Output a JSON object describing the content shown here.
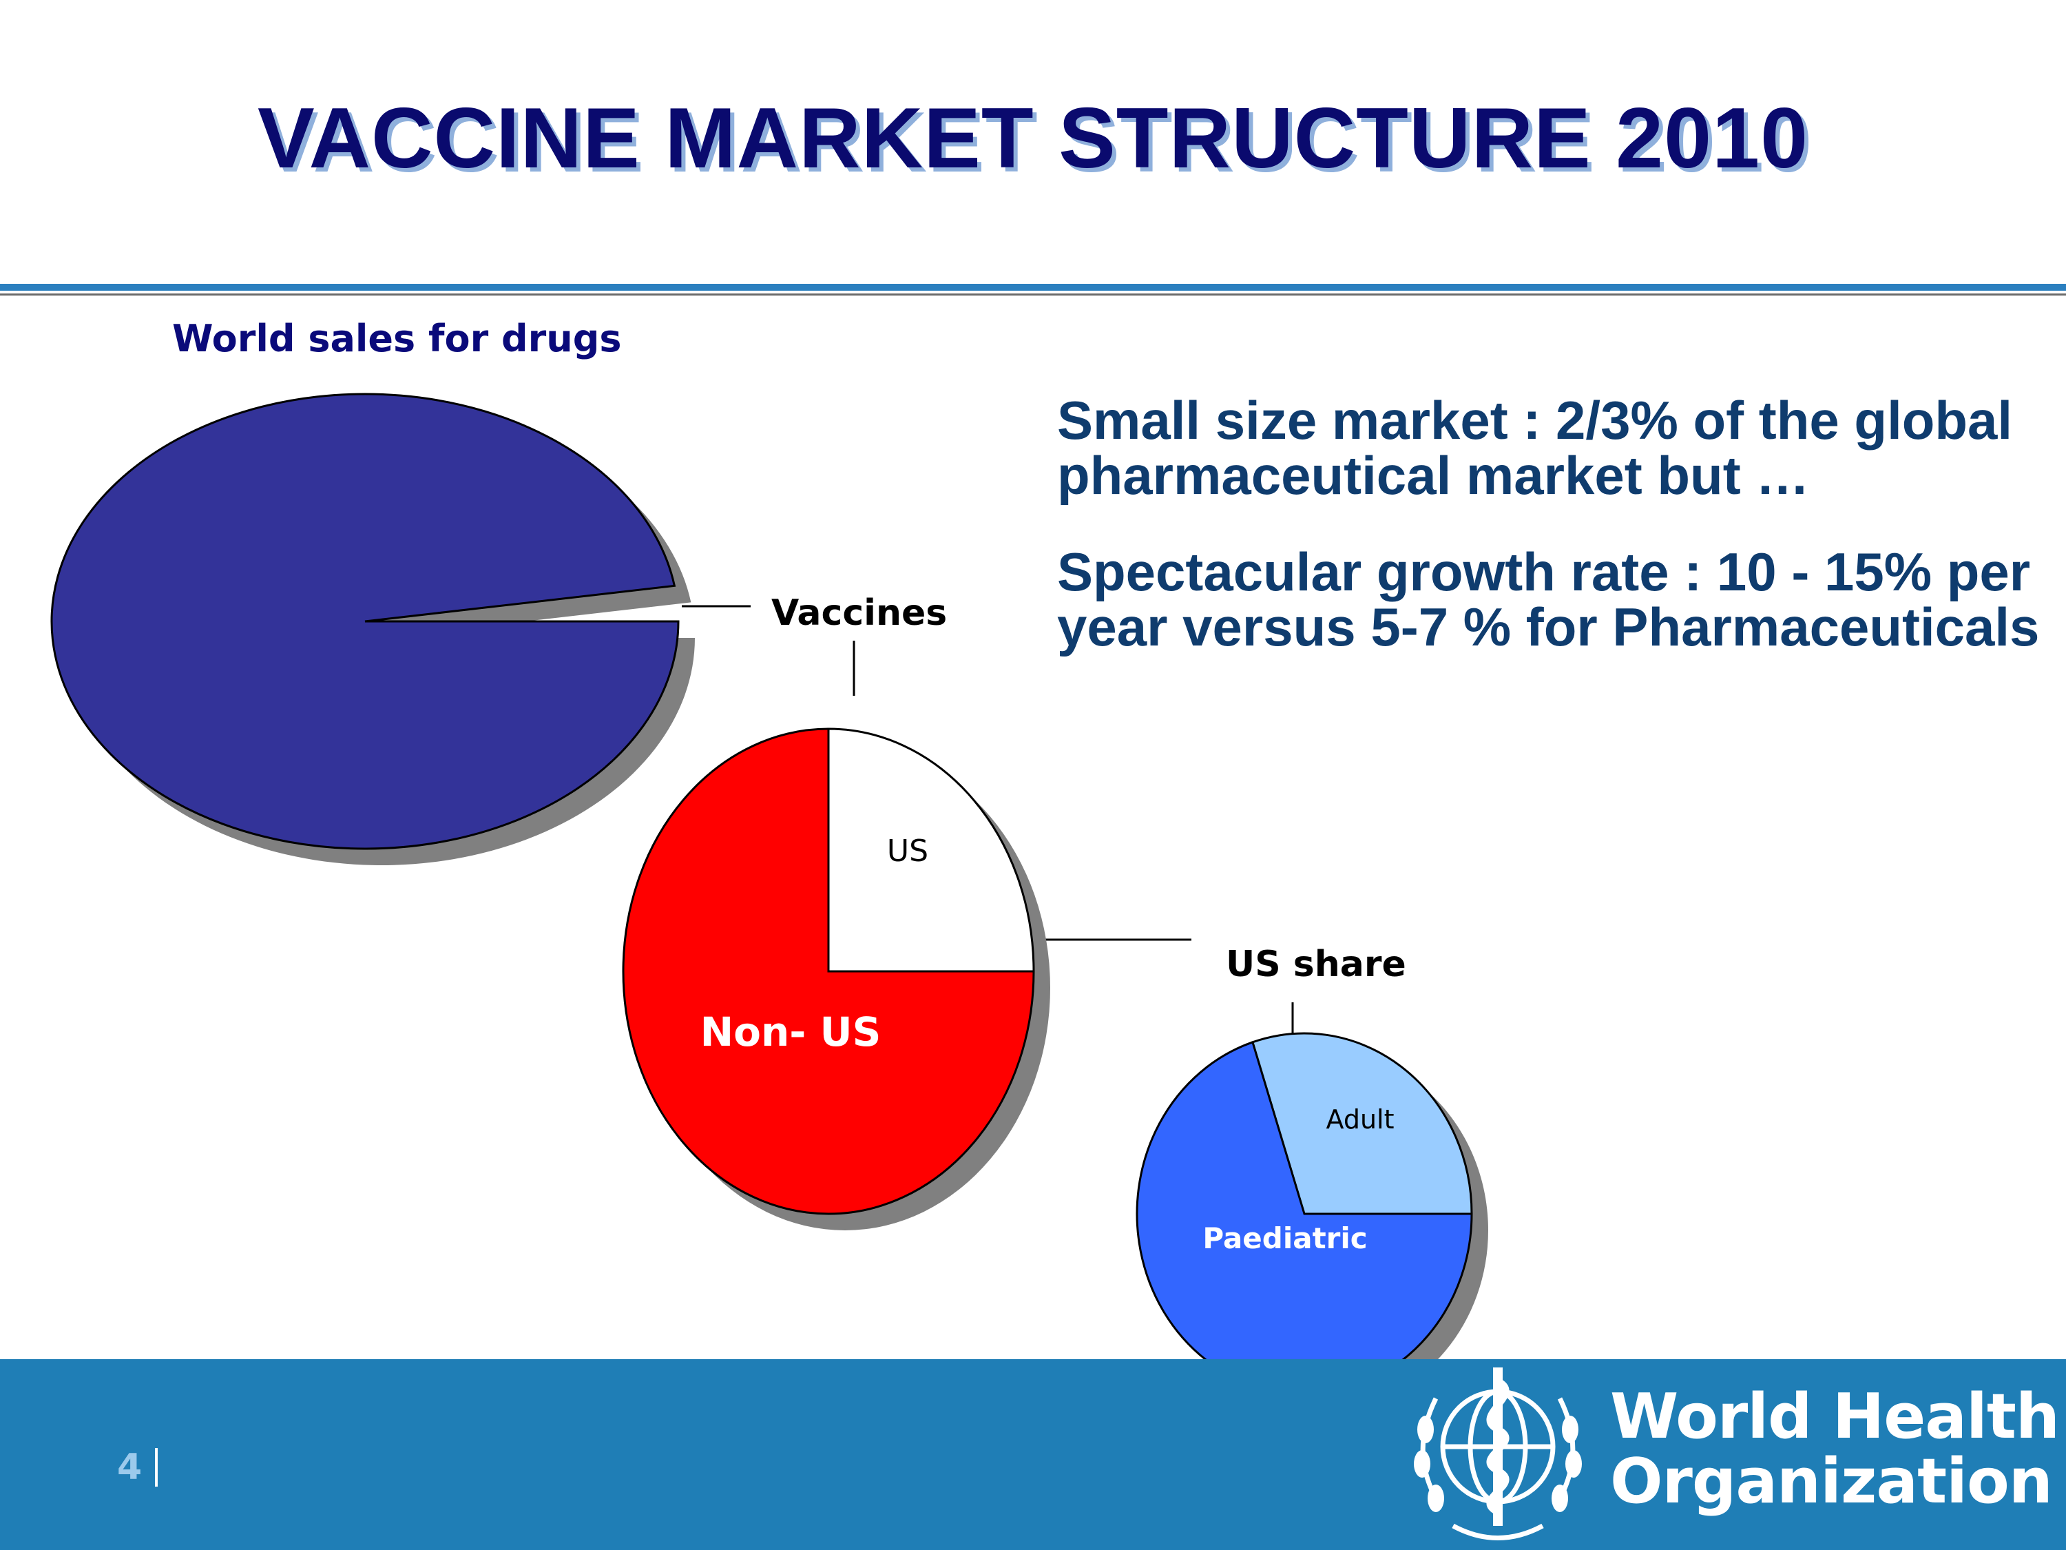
{
  "slide": {
    "title": "VACCINE MARKET STRUCTURE 2010",
    "subtitle": "World sales for drugs",
    "bullets": [
      "Small size market :  2/3% of the global pharmaceutical market but …",
      "Spectacular growth rate : 10 - 15% per year  versus 5-7 % for Pharmaceuticals"
    ],
    "page_number": "4",
    "organization": [
      "World Health",
      "Organization"
    ]
  },
  "colors": {
    "title": "#0a0a6e",
    "footer": "#1f7eb6",
    "drugs": "#333399",
    "non_us": "#ff0000",
    "us": "#ffffff",
    "paediatric": "#3366ff",
    "adult": "#99ccff"
  },
  "icons": [
    "who-emblem-icon"
  ],
  "chart_data": [
    {
      "type": "pie",
      "title": "World sales for drugs",
      "slices": [
        {
          "label": "",
          "value": 97.5,
          "color": "#333399"
        },
        {
          "label": "Vaccines",
          "value": 2.5,
          "color": "#ffffff"
        }
      ],
      "callout": "Vaccines"
    },
    {
      "type": "pie",
      "title": "",
      "slices": [
        {
          "label": "US",
          "value": 25,
          "color": "#ffffff"
        },
        {
          "label": "Non- US",
          "value": 75,
          "color": "#ff0000"
        }
      ],
      "callout": "US share"
    },
    {
      "type": "pie",
      "title": "",
      "slices": [
        {
          "label": "Adult",
          "value": 30,
          "color": "#99ccff"
        },
        {
          "label": "Paediatric",
          "value": 70,
          "color": "#3366ff"
        }
      ]
    }
  ]
}
